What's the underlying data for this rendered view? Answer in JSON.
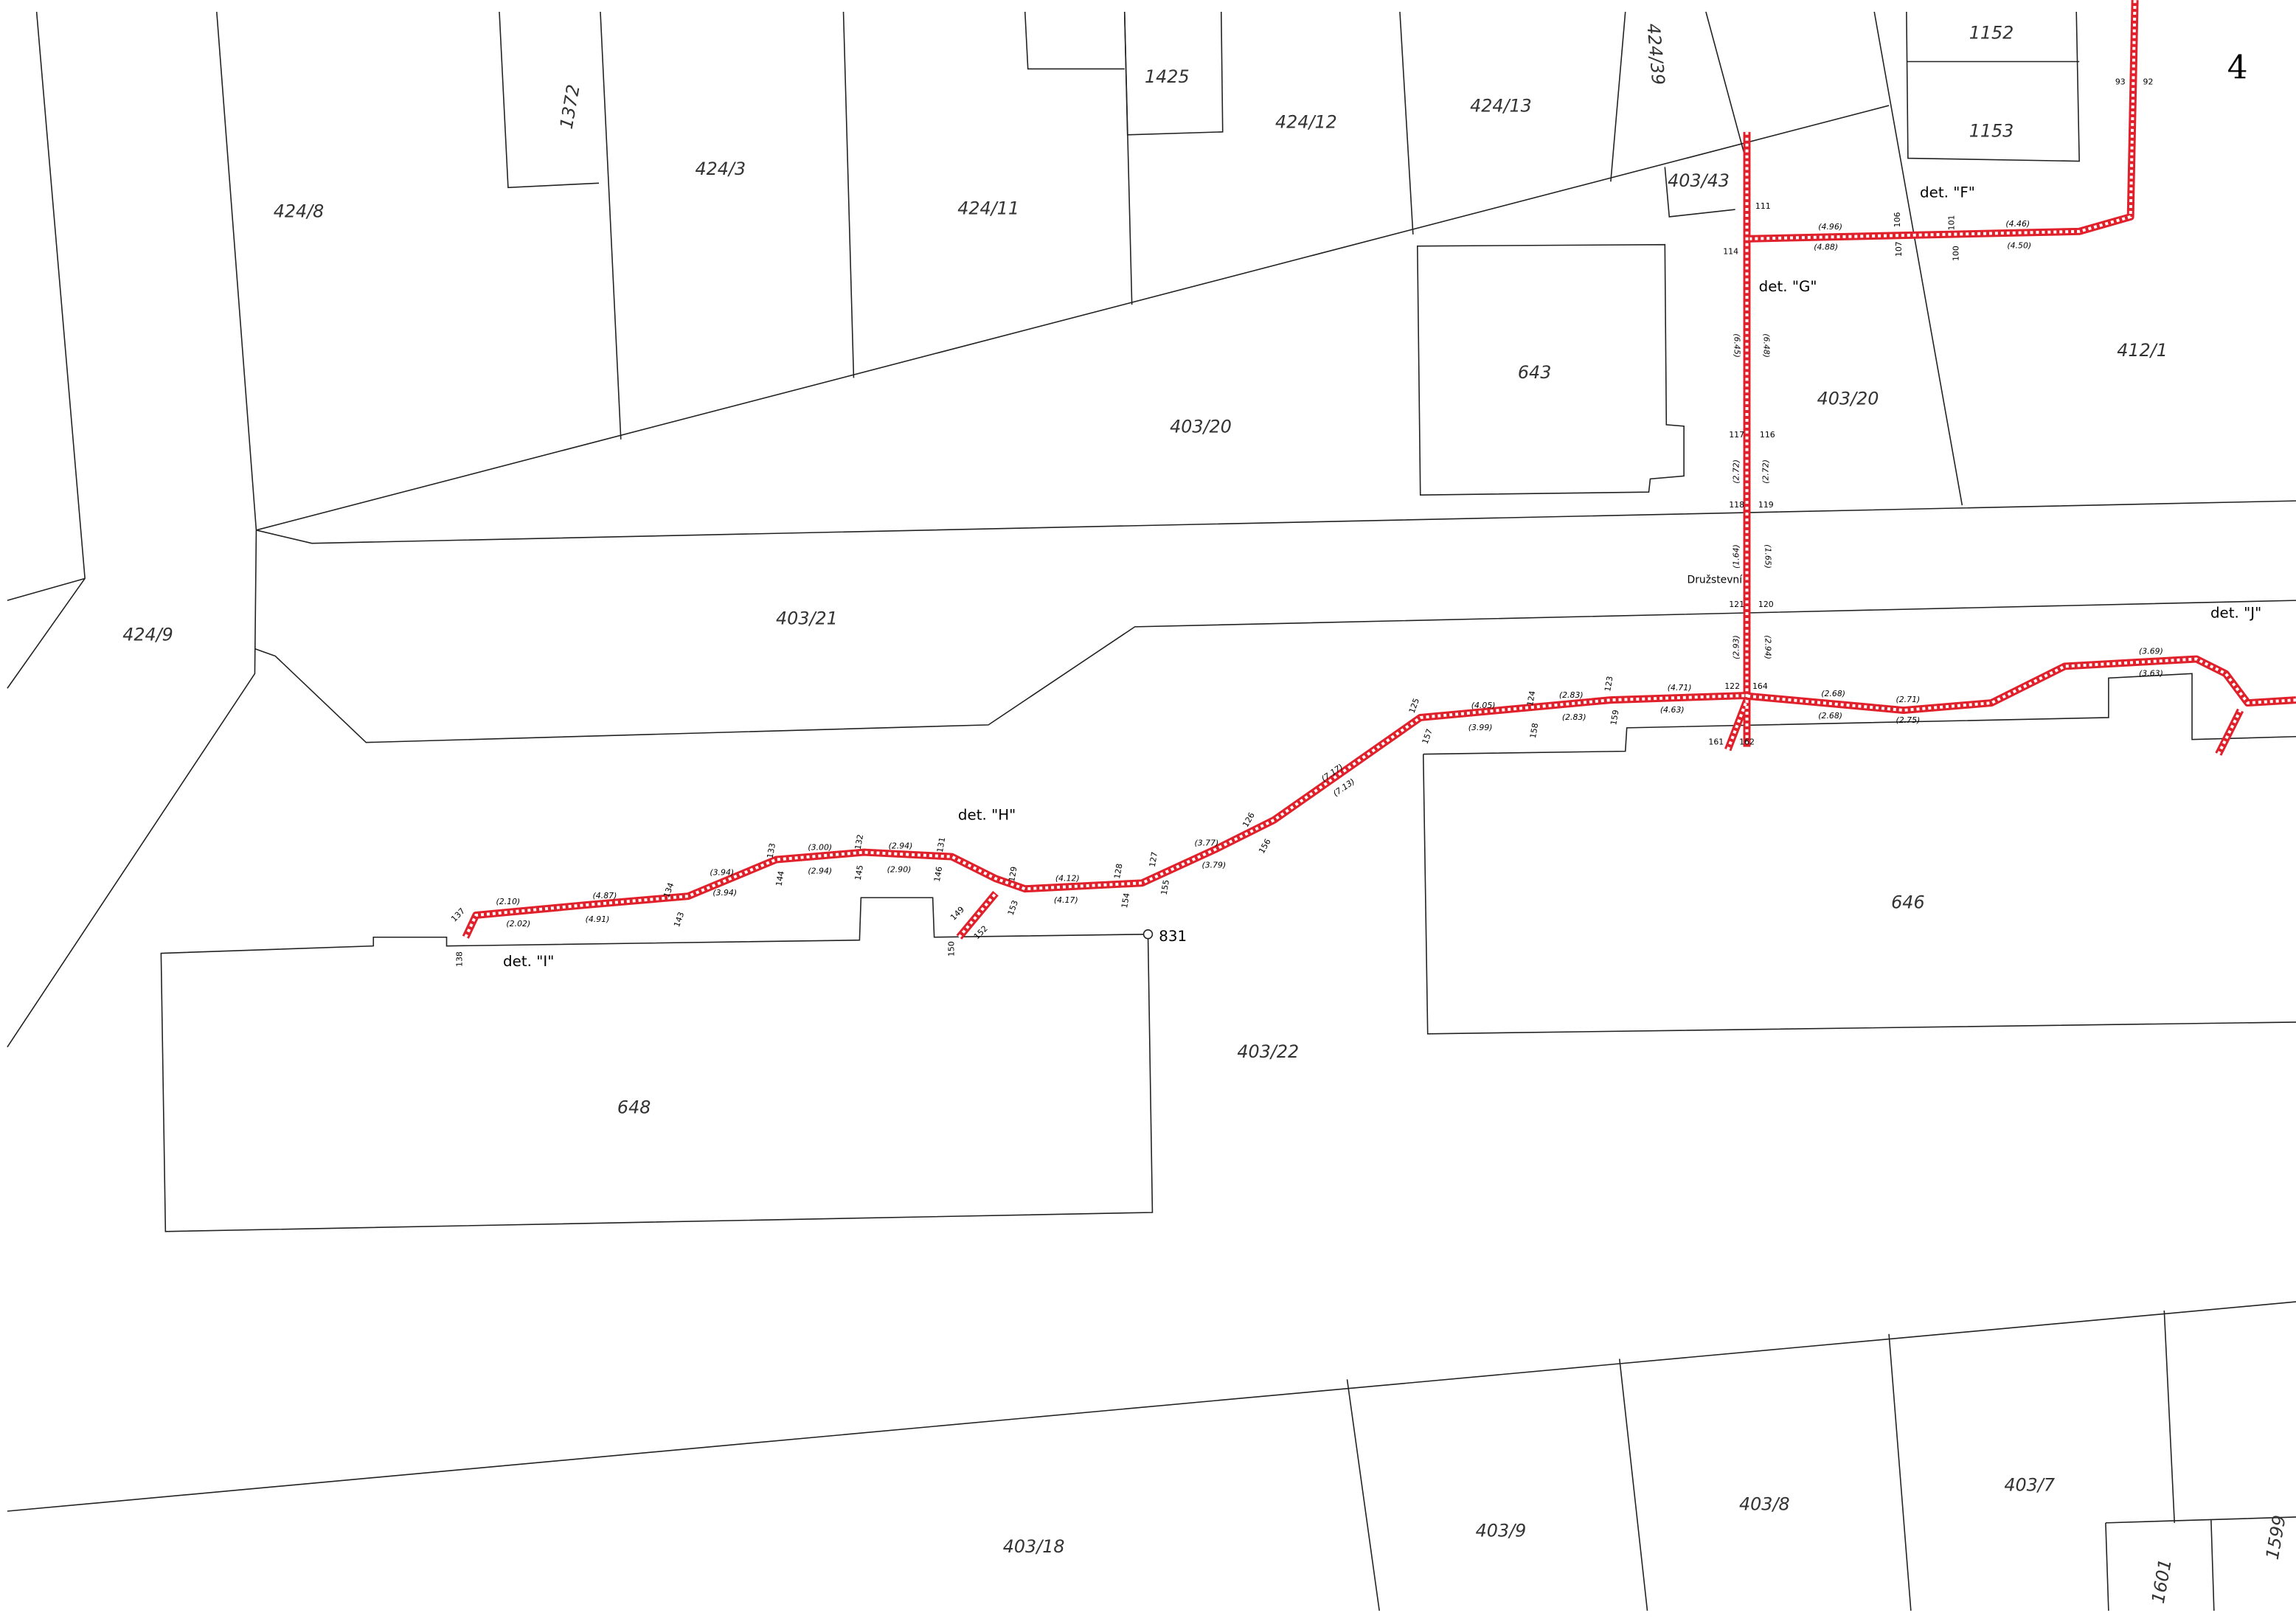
{
  "sheet_number": "4",
  "street": "Družstevní",
  "survey_point": "831",
  "parcels": [
    "424/8",
    "424/3",
    "424/11",
    "1372",
    "1425",
    "424/12",
    "424/13",
    "424/39",
    "403/43",
    "1152",
    "1153",
    "412/1",
    "643",
    "403/20",
    "403/20",
    "424/9",
    "403/21",
    "646",
    "403/22",
    "648",
    "403/18",
    "403/9",
    "403/8",
    "403/7",
    "1601",
    "1599"
  ],
  "details": [
    "det. \"F\"",
    "det. \"G\"",
    "det. \"H\"",
    "det. \"I\"",
    "det. \"J\""
  ],
  "points": [
    "93",
    "92",
    "111",
    "114",
    "116",
    "117",
    "118",
    "119",
    "121",
    "120",
    "122",
    "164",
    "125",
    "157",
    "124",
    "158",
    "123",
    "159",
    "161",
    "162",
    "137",
    "138",
    "134",
    "143",
    "133",
    "144",
    "132",
    "145",
    "146",
    "131",
    "129",
    "153",
    "128",
    "154",
    "127",
    "155",
    "126",
    "156",
    "149",
    "150",
    "152",
    "100",
    "101",
    "107",
    "106"
  ],
  "measurements": [
    "(4.96)",
    "(4.88)",
    "(4.46)",
    "(4.50)",
    "(6.45)",
    "(6.48)",
    "(2.72)",
    "(2.72)",
    "(1.64)",
    "(1.65)",
    "(2.93)",
    "(2.94)",
    "(4.05)",
    "(3.99)",
    "(2.83)",
    "(2.83)",
    "(4.71)",
    "(4.63)",
    "(2.68)",
    "(2.68)",
    "(2.71)",
    "(2.75)",
    "(3.69)",
    "(3.63)",
    "(2.10)",
    "(2.02)",
    "(4.87)",
    "(4.91)",
    "(3.94)",
    "(3.94)",
    "(3.00)",
    "(2.94)",
    "(2.94)",
    "(2.90)",
    "(4.12)",
    "(4.17)",
    "(3.77)",
    "(3.79)",
    "(7.17)",
    "(7.13)"
  ]
}
